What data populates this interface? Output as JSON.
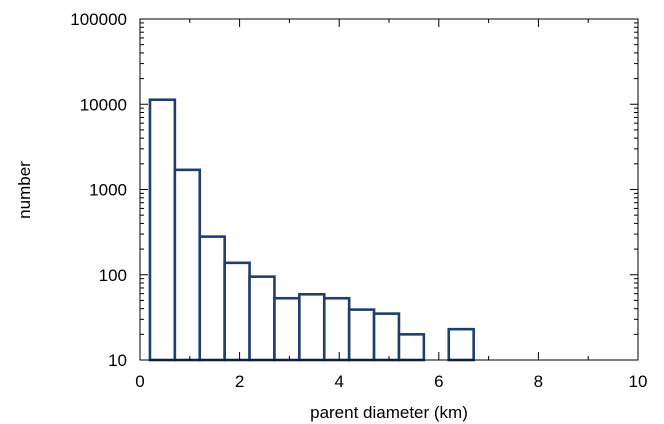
{
  "chart_data": {
    "type": "bar",
    "title": "",
    "xlabel": "parent diameter (km)",
    "ylabel": "number",
    "x_scale": "linear",
    "y_scale": "log",
    "xlim": [
      0,
      10
    ],
    "ylim": [
      10,
      100000
    ],
    "x_ticks": [
      0,
      2,
      4,
      6,
      8,
      10
    ],
    "y_ticks": [
      10,
      100,
      1000,
      10000,
      100000
    ],
    "x_tick_labels": [
      "0",
      "2",
      "4",
      "6",
      "8",
      "10"
    ],
    "y_tick_labels": [
      "10",
      "100",
      "1000",
      "10000",
      "100000"
    ],
    "grid": false,
    "legend": "none",
    "bar_color": "#1f3d6e",
    "bin_width": 0.5,
    "bins": [
      {
        "x0": 0.2,
        "x1": 0.7,
        "value": 11300
      },
      {
        "x0": 0.7,
        "x1": 1.2,
        "value": 1700
      },
      {
        "x0": 1.2,
        "x1": 1.7,
        "value": 280
      },
      {
        "x0": 1.7,
        "x1": 2.2,
        "value": 138
      },
      {
        "x0": 2.2,
        "x1": 2.7,
        "value": 95
      },
      {
        "x0": 2.7,
        "x1": 3.2,
        "value": 53
      },
      {
        "x0": 3.2,
        "x1": 3.7,
        "value": 59
      },
      {
        "x0": 3.7,
        "x1": 4.2,
        "value": 53
      },
      {
        "x0": 4.2,
        "x1": 4.7,
        "value": 39
      },
      {
        "x0": 4.7,
        "x1": 5.2,
        "value": 35
      },
      {
        "x0": 5.2,
        "x1": 5.7,
        "value": 20
      },
      {
        "x0": 6.2,
        "x1": 6.7,
        "value": 23
      }
    ]
  }
}
